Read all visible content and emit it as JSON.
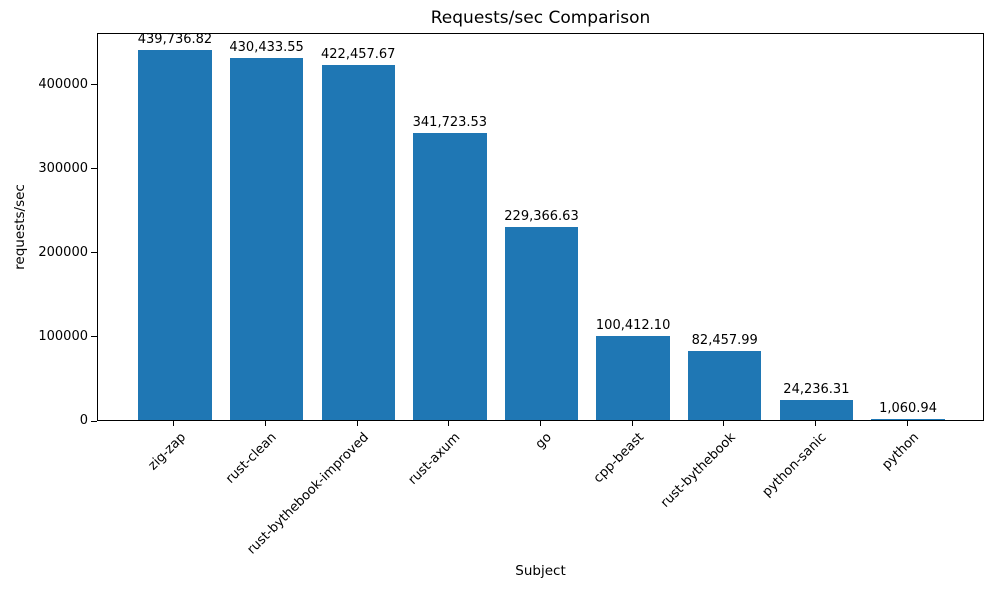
{
  "chart_data": {
    "type": "bar",
    "title": "Requests/sec Comparison",
    "xlabel": "Subject",
    "ylabel": "requests/sec",
    "categories": [
      "zig-zap",
      "rust-clean",
      "rust-bythebook-improved",
      "rust-axum",
      "go",
      "cpp-beast",
      "rust-bythebook",
      "python-sanic",
      "python"
    ],
    "values": [
      439736.82,
      430433.55,
      422457.67,
      341723.53,
      229366.63,
      100412.1,
      82457.99,
      24236.31,
      1060.94
    ],
    "bar_labels": [
      "439,736.82",
      "430,433.55",
      "422,457.67",
      "341,723.53",
      "229,366.63",
      "100,412.10",
      "82,457.99",
      "24,236.31",
      "1,060.94"
    ],
    "yticks": [
      0,
      100000,
      200000,
      300000,
      400000
    ],
    "ytick_labels": [
      "0",
      "100000",
      "200000",
      "300000",
      "400000"
    ],
    "ylim": [
      0,
      461723.66
    ],
    "bar_color": "#1f77b4",
    "grid": false,
    "legend": null,
    "x_tick_rotation": 45
  }
}
